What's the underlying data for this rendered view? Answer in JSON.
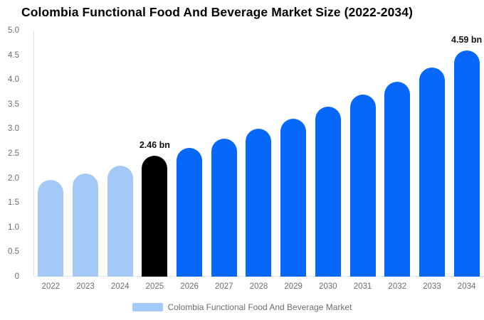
{
  "title": "Colombia Functional Food And Beverage Market Size (2022-2034)",
  "colors": {
    "past_bar": "#A5C9F6",
    "highlight_bar": "#000000",
    "forecast_bar": "#0667FB",
    "axis_line": "#E3E3E3",
    "tick_text": "#6E6E6E"
  },
  "y_axis": {
    "ticks": [
      "5.0",
      "4.5",
      "4.0",
      "3.5",
      "3.0",
      "2.5",
      "2.0",
      "1.5",
      "1.0",
      "0.5",
      "0"
    ],
    "min": 0,
    "max": 5
  },
  "legend": {
    "label": "Colombia Functional Food And Beverage Market"
  },
  "chart_data": {
    "type": "bar",
    "title": "Colombia Functional Food And Beverage Market Size (2022-2034)",
    "unit": "bn",
    "ylim": [
      0,
      5
    ],
    "grid": false,
    "legend_position": "bottom",
    "categories": [
      "2022",
      "2023",
      "2024",
      "2025",
      "2026",
      "2027",
      "2028",
      "2029",
      "2030",
      "2031",
      "2032",
      "2033",
      "2034"
    ],
    "series": [
      {
        "name": "Colombia Functional Food And Beverage Market",
        "values": [
          1.97,
          2.1,
          2.25,
          2.46,
          2.61,
          2.8,
          3.0,
          3.21,
          3.45,
          3.7,
          3.96,
          4.25,
          4.59
        ]
      }
    ],
    "bar_styles": [
      "past",
      "past",
      "past",
      "highlight",
      "forecast",
      "forecast",
      "forecast",
      "forecast",
      "forecast",
      "forecast",
      "forecast",
      "forecast",
      "forecast"
    ],
    "annotations": [
      {
        "category": "2025",
        "text": "2.46 bn"
      },
      {
        "category": "2034",
        "text": "4.59 bn"
      }
    ]
  }
}
